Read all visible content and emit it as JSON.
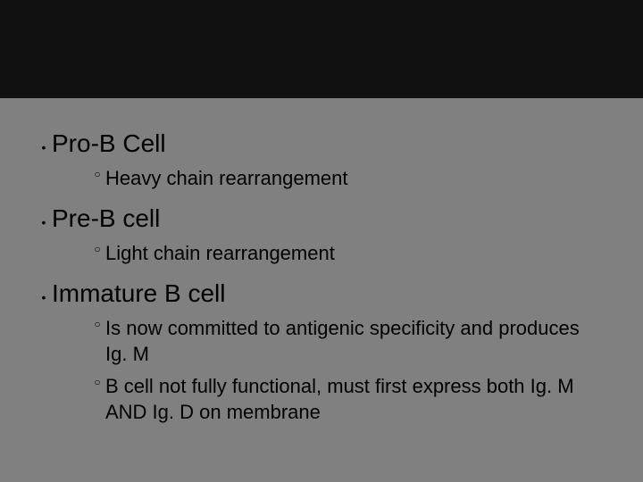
{
  "colors": {
    "background": "#808080",
    "top_band": "#111111",
    "text": "#000000"
  },
  "slide": {
    "items": [
      {
        "label": "Pro-B Cell",
        "sub": [
          "Heavy chain rearrangement"
        ]
      },
      {
        "label": "Pre-B cell",
        "sub": [
          "Light chain rearrangement"
        ]
      },
      {
        "label": "Immature B cell",
        "sub": [
          "Is now committed to antigenic specificity and produces Ig. M",
          "B cell not fully functional, must first express both Ig. M AND Ig. D on membrane"
        ]
      }
    ]
  }
}
